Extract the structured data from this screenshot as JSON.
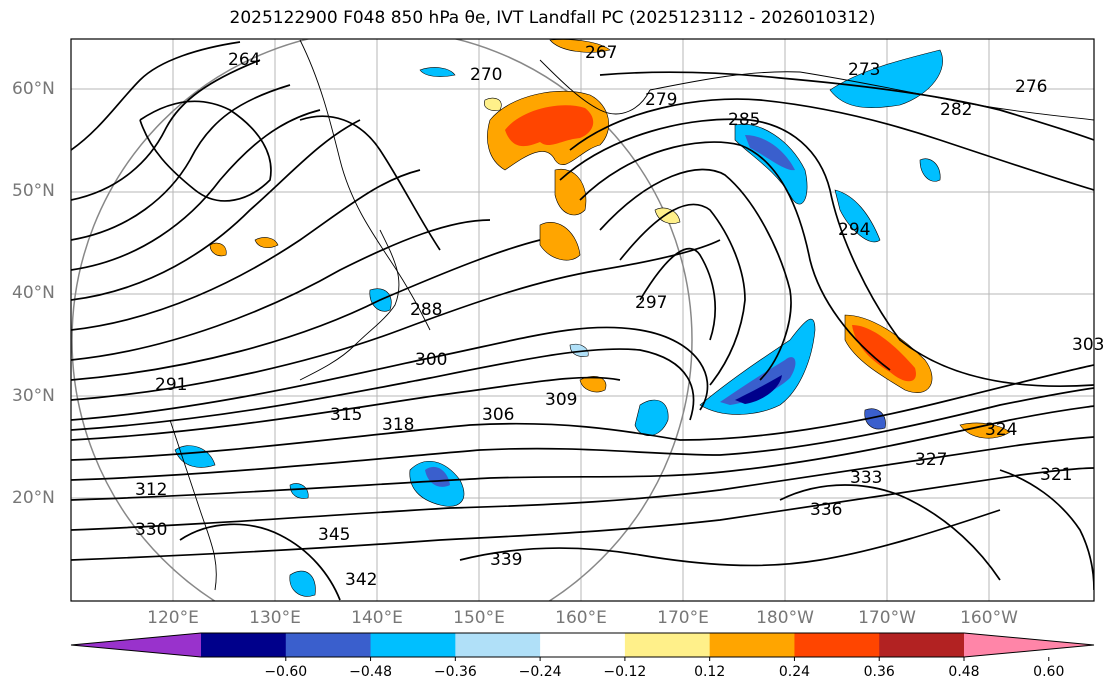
{
  "title": "2025122900 F048 850 hPa θe, IVT Landfall PC (2025123112 - 2026010312)",
  "map": {
    "lat_labels": [
      "60°N",
      "50°N",
      "40°N",
      "30°N",
      "20°N"
    ],
    "lon_labels": [
      "120°E",
      "130°E",
      "140°E",
      "150°E",
      "160°E",
      "170°E",
      "180°W",
      "170°W",
      "160°W"
    ],
    "contour_labels": [
      "264",
      "267",
      "270",
      "273",
      "276",
      "279",
      "282",
      "285",
      "288",
      "291",
      "294",
      "297",
      "300",
      "303",
      "306",
      "309",
      "312",
      "315",
      "318",
      "321",
      "324",
      "327",
      "330",
      "333",
      "336",
      "339",
      "342",
      "345"
    ]
  },
  "colorbar": {
    "ticks": [
      "−0.60",
      "−0.48",
      "−0.36",
      "−0.24",
      "−0.12",
      "0.12",
      "0.24",
      "0.36",
      "0.48",
      "0.60"
    ],
    "colors": [
      "#9932cc",
      "#00008b",
      "#3a5fcd",
      "#00bfff",
      "#b0e0f8",
      "#ffffff",
      "#fff08a",
      "#ffa500",
      "#ff4500",
      "#b22222",
      "#ff85a8"
    ]
  }
}
